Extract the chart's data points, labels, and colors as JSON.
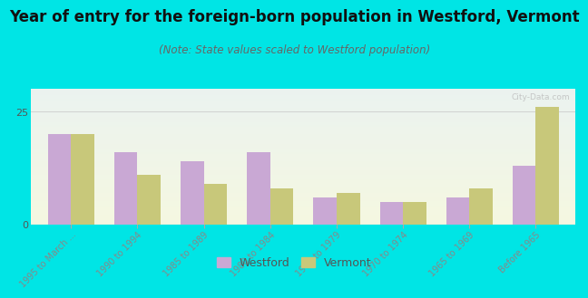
{
  "title": "Year of entry for the foreign-born population in Westford, Vermont",
  "subtitle": "(Note: State values scaled to Westford population)",
  "categories": [
    "1995 to March ...",
    "1990 to 1994",
    "1985 to 1989",
    "1980 to 1984",
    "1975 to 1979",
    "1970 to 1974",
    "1965 to 1969",
    "Before 1965"
  ],
  "westford_values": [
    20,
    16,
    14,
    16,
    6,
    5,
    6,
    13
  ],
  "vermont_values": [
    20,
    11,
    9,
    8,
    7,
    5,
    8,
    26
  ],
  "westford_color": "#c9a8d4",
  "vermont_color": "#c8c87a",
  "outer_bg": "#00e5e5",
  "ylim": [
    0,
    30
  ],
  "yticks": [
    0,
    25
  ],
  "bar_width": 0.35,
  "title_fontsize": 12,
  "subtitle_fontsize": 8.5
}
